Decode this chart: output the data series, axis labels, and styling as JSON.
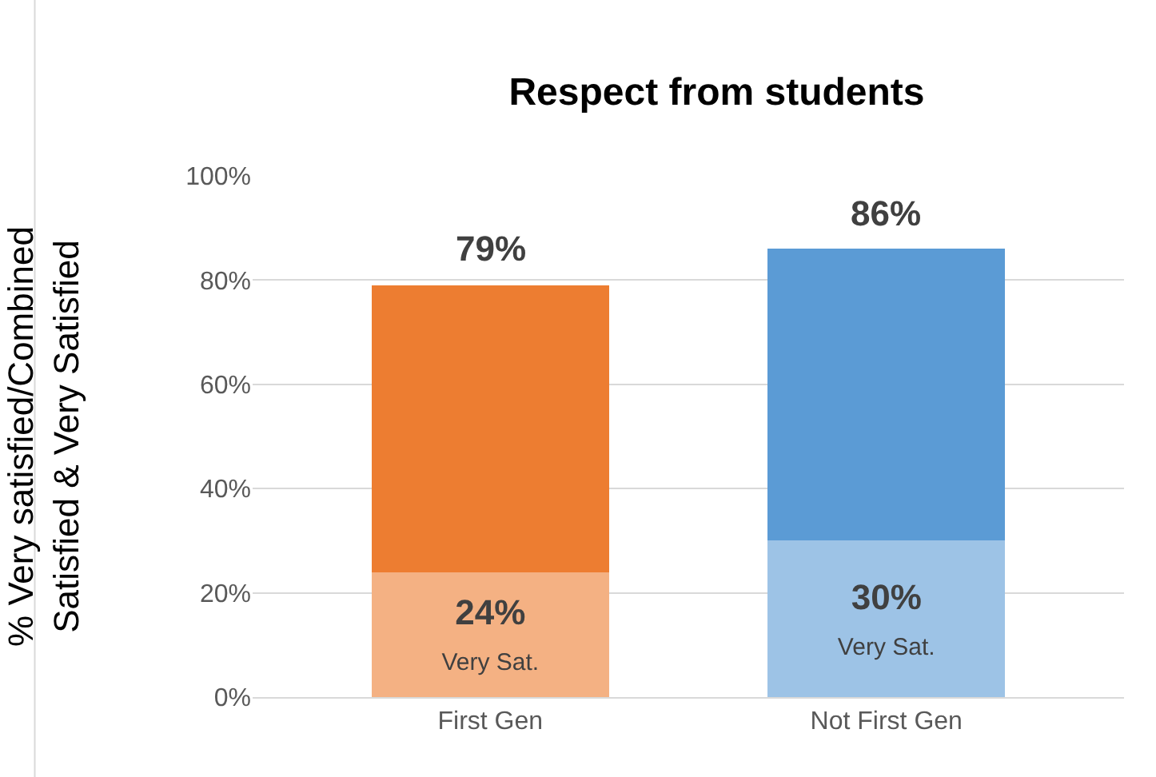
{
  "chart_data": {
    "type": "bar",
    "title": "Respect from students",
    "ylabel": "% Very satisfied/Combined\nSatisfied & Very Satisfied",
    "categories": [
      "First Gen",
      "Not First Gen"
    ],
    "stacked": true,
    "series": [
      {
        "colors": [
          "#f4b183",
          "#9dc3e6"
        ],
        "values": [
          24,
          30
        ],
        "value_labels": [
          "24%",
          "30%"
        ]
      },
      {
        "colors": [
          "#ed7d31",
          "#5b9bd5"
        ],
        "values": [
          55,
          56
        ]
      }
    ],
    "totals": [
      "79%",
      "86%"
    ],
    "annotations": [
      "Very Sat.",
      "Very Sat."
    ],
    "ylim": [
      0,
      100
    ],
    "yticks": [
      {
        "value": 0,
        "label": "0%"
      },
      {
        "value": 20,
        "label": "20%"
      },
      {
        "value": 40,
        "label": "40%"
      },
      {
        "value": 60,
        "label": "60%"
      },
      {
        "value": 80,
        "label": "80%"
      },
      {
        "value": 100,
        "label": "100%"
      }
    ],
    "grid": "y"
  }
}
